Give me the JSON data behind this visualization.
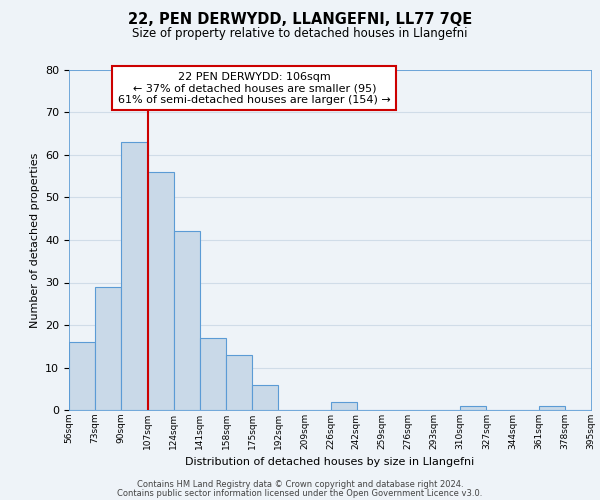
{
  "title": "22, PEN DERWYDD, LLANGEFNI, LL77 7QE",
  "subtitle": "Size of property relative to detached houses in Llangefni",
  "xlabel": "Distribution of detached houses by size in Llangefni",
  "ylabel": "Number of detached properties",
  "bar_edges": [
    56,
    73,
    90,
    107,
    124,
    141,
    158,
    175,
    192,
    209,
    226,
    242,
    259,
    276,
    293,
    310,
    327,
    344,
    361,
    378,
    395
  ],
  "bar_heights": [
    16,
    29,
    63,
    56,
    42,
    17,
    13,
    6,
    0,
    0,
    2,
    0,
    0,
    0,
    0,
    1,
    0,
    0,
    1,
    0
  ],
  "bar_color": "#c9d9e8",
  "bar_edge_color": "#5b9bd5",
  "vline_x": 107,
  "vline_color": "#cc0000",
  "ylim": [
    0,
    80
  ],
  "yticks": [
    0,
    10,
    20,
    30,
    40,
    50,
    60,
    70,
    80
  ],
  "annotation_line1": "22 PEN DERWYDD: 106sqm",
  "annotation_line2": "← 37% of detached houses are smaller (95)",
  "annotation_line3": "61% of semi-detached houses are larger (154) →",
  "footer_line1": "Contains HM Land Registry data © Crown copyright and database right 2024.",
  "footer_line2": "Contains public sector information licensed under the Open Government Licence v3.0.",
  "grid_color": "#d0dce8",
  "background_color": "#eef3f8",
  "tick_labels": [
    "56sqm",
    "73sqm",
    "90sqm",
    "107sqm",
    "124sqm",
    "141sqm",
    "158sqm",
    "175sqm",
    "192sqm",
    "209sqm",
    "226sqm",
    "242sqm",
    "259sqm",
    "276sqm",
    "293sqm",
    "310sqm",
    "327sqm",
    "344sqm",
    "361sqm",
    "378sqm",
    "395sqm"
  ]
}
